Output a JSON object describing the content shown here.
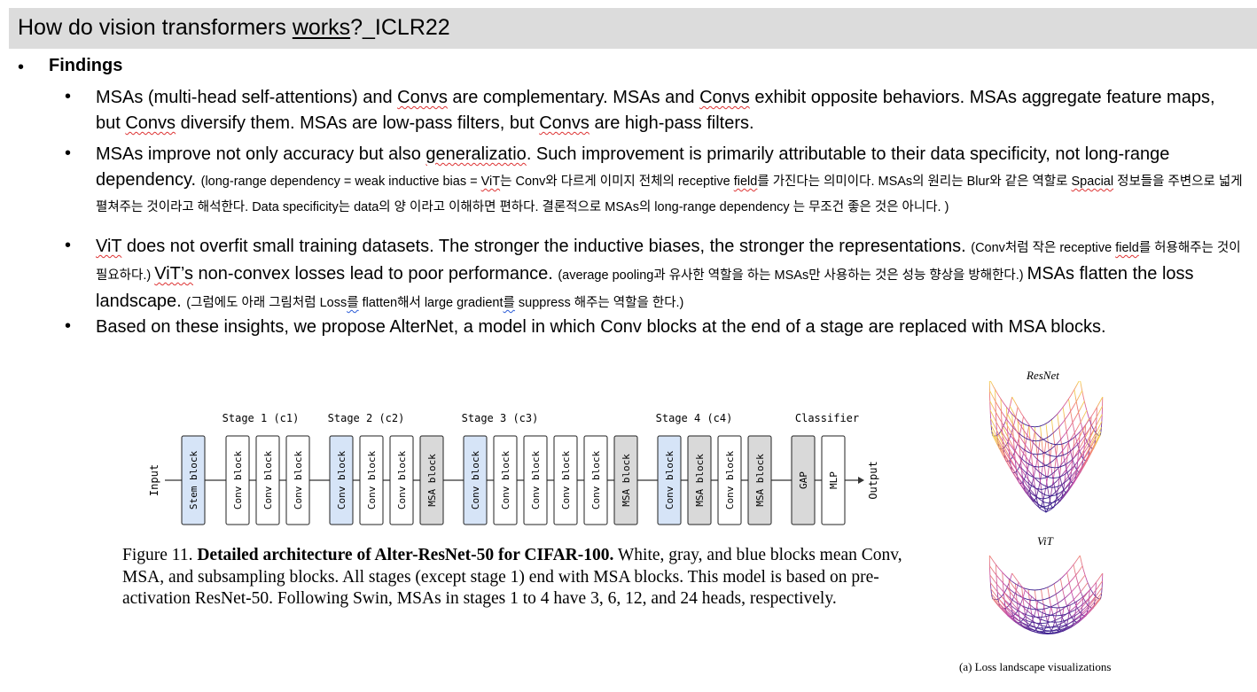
{
  "title": "How do vision transformers works?_ICLR22",
  "findings_label": "Findings",
  "bullets": {
    "b1": {
      "p1": "MSAs (multi-head self-attentions) and ",
      "convs1": "Convs",
      "p2": " are complementary. MSAs and ",
      "convs2": "Convs",
      "p3": " exhibit opposite behaviors. MSAs aggregate feature maps, but ",
      "convs3": "Convs",
      "p4": " diversify them. MSAs are low-pass filters, but ",
      "convs4": "Convs",
      "p5": " are high-pass filters."
    },
    "b2": {
      "p1": "MSAs improve not only accuracy but also ",
      "gen": "generalizatio",
      "p2": ". Such improvement is primarily attributable to their data specificity, not long-range dependency. ",
      "n1": "(long-range dependency = weak inductive bias = ",
      "vit": "ViT",
      "n2": "는 Conv와 다르게 이미지 전체의 receptive ",
      "field": "field",
      "n3": "를 가진다는 의미이다. MSAs의 원리는 Blur와 같은 역할로 ",
      "spacial": "Spacial",
      "n4": " 정보들을 주변으로 넓게 펼쳐주는 것이라고 해석한다. Data specificity는 data의 양 이라고 이해하면 편하다. 결론적으로 MSAs의 long-range dependency 는 무조건 좋은 것은 아니다. )"
    },
    "b3": {
      "vit1": "ViT",
      "p1": " does not overfit small training datasets. The stronger the inductive biases, the stronger the representations. ",
      "n1": "(Conv처럼 작은 receptive ",
      "field": "field",
      "n2": "를 허용해주는 것이 필요하다.) ",
      "vit2": "ViT’s",
      "p2": " non-convex losses lead to poor performance. ",
      "n3": "(average pooling과 유사한 역할을 하는 MSAs만 사용하는 것은 성능 향상을 방해한다.) ",
      "p3": "MSAs flatten the loss landscape. ",
      "n4": "(그럼에도 아래 그림처럼 Loss",
      "n5": "를",
      "n6": " flatten해서 large gradient",
      "n7": "를",
      "n8": " suppress 해주는 역할을 한다.)"
    },
    "b4": "Based on these insights, we propose AlterNet, a model in which Conv blocks at the end of a stage are replaced with MSA blocks."
  },
  "diagram": {
    "input_label": "Input",
    "output_label": "Output",
    "stages": [
      {
        "label": "Stage 1 (c1)"
      },
      {
        "label": "Stage 2 (c2)"
      },
      {
        "label": "Stage 3 (c3)"
      },
      {
        "label": "Stage 4 (c4)"
      },
      {
        "label": "Classifier"
      }
    ],
    "blocks": [
      {
        "label": "Stem block",
        "kind": "sub"
      },
      {
        "label": "Conv block",
        "kind": "conv"
      },
      {
        "label": "Conv block",
        "kind": "conv"
      },
      {
        "label": "Conv block",
        "kind": "conv"
      },
      {
        "label": "Conv block",
        "kind": "sub"
      },
      {
        "label": "Conv block",
        "kind": "conv"
      },
      {
        "label": "Conv block",
        "kind": "conv"
      },
      {
        "label": "MSA block",
        "kind": "msa"
      },
      {
        "label": "Conv block",
        "kind": "sub"
      },
      {
        "label": "Conv block",
        "kind": "conv"
      },
      {
        "label": "Conv block",
        "kind": "conv"
      },
      {
        "label": "Conv block",
        "kind": "conv"
      },
      {
        "label": "Conv block",
        "kind": "conv"
      },
      {
        "label": "MSA block",
        "kind": "msa"
      },
      {
        "label": "Conv block",
        "kind": "sub"
      },
      {
        "label": "MSA block",
        "kind": "msa"
      },
      {
        "label": "Conv block",
        "kind": "conv"
      },
      {
        "label": "MSA block",
        "kind": "msa"
      },
      {
        "label": "GAP",
        "kind": "msa"
      },
      {
        "label": "MLP",
        "kind": "conv"
      }
    ],
    "colors": {
      "conv": "#ffffff",
      "msa": "#d9d9d9",
      "sub": "#d6e4f7"
    }
  },
  "caption": {
    "prefix": "Figure 11. ",
    "bold": "Detailed architecture of Alter-ResNet-50 for CIFAR-100.",
    "rest": " White, gray, and blue blocks mean Conv, MSA, and subsampling blocks. All stages (except stage 1) end with MSA blocks. This model is based on pre-activation ResNet-50. Following Swin, MSAs in stages 1 to 4 have 3, 6, 12, and 24 heads, respectively."
  },
  "landscape": {
    "resnet_label": "ResNet",
    "vit_label": "ViT",
    "subcaption": "(a) Loss landscape visualizations"
  }
}
